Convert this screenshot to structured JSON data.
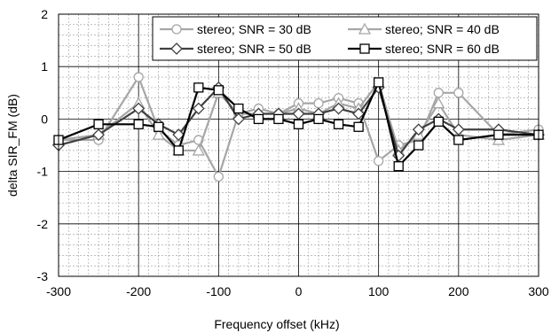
{
  "chart_data": {
    "type": "line",
    "title": "",
    "xlabel": "Frequency offset (kHz)",
    "ylabel": "delta SIR_FM (dB)",
    "xlim": [
      -300,
      300
    ],
    "ylim": [
      -3,
      2
    ],
    "xticks": [
      -300,
      -200,
      -100,
      0,
      100,
      200,
      300
    ],
    "yticks": [
      -3,
      -2,
      -1,
      0,
      1,
      2
    ],
    "grid": "major solid, minor dashed",
    "legend_position": "top-right",
    "series": [
      {
        "name": "stereo; SNR = 30 dB",
        "color": "#a6a6a6",
        "marker": "circle",
        "points": [
          [
            -300,
            -0.4
          ],
          [
            -250,
            -0.4
          ],
          [
            -200,
            0.8
          ],
          [
            -175,
            -0.2
          ],
          [
            -150,
            -0.5
          ],
          [
            -125,
            -0.4
          ],
          [
            -100,
            -1.1
          ],
          [
            -75,
            0.1
          ],
          [
            -50,
            0.2
          ],
          [
            -25,
            0.1
          ],
          [
            0,
            0.3
          ],
          [
            25,
            0.3
          ],
          [
            50,
            0.4
          ],
          [
            75,
            0.3
          ],
          [
            100,
            -0.8
          ],
          [
            125,
            -0.5
          ],
          [
            150,
            -0.4
          ],
          [
            175,
            0.5
          ],
          [
            200,
            0.5
          ],
          [
            250,
            -0.3
          ],
          [
            300,
            -0.2
          ]
        ]
      },
      {
        "name": "stereo; SNR = 40 dB",
        "color": "#a6a6a6",
        "marker": "triangle",
        "points": [
          [
            -300,
            -0.4
          ],
          [
            -250,
            -0.3
          ],
          [
            -200,
            0.3
          ],
          [
            -175,
            -0.3
          ],
          [
            -150,
            -0.6
          ],
          [
            -125,
            -0.6
          ],
          [
            -100,
            0.5
          ],
          [
            -75,
            0.1
          ],
          [
            -50,
            0.1
          ],
          [
            -25,
            0.1
          ],
          [
            0,
            0.2
          ],
          [
            25,
            0.1
          ],
          [
            50,
            0.3
          ],
          [
            75,
            0.2
          ],
          [
            100,
            0.7
          ],
          [
            125,
            -0.6
          ],
          [
            150,
            -0.3
          ],
          [
            175,
            0.3
          ],
          [
            200,
            -0.3
          ],
          [
            250,
            -0.4
          ],
          [
            300,
            -0.3
          ]
        ]
      },
      {
        "name": "stereo; SNR = 50 dB",
        "color": "#404040",
        "marker": "diamond",
        "points": [
          [
            -300,
            -0.5
          ],
          [
            -250,
            -0.3
          ],
          [
            -200,
            0.2
          ],
          [
            -175,
            -0.1
          ],
          [
            -150,
            -0.3
          ],
          [
            -125,
            0.2
          ],
          [
            -100,
            0.6
          ],
          [
            -75,
            0.0
          ],
          [
            -50,
            0.1
          ],
          [
            -25,
            0.1
          ],
          [
            0,
            0.1
          ],
          [
            25,
            0.1
          ],
          [
            50,
            0.2
          ],
          [
            75,
            0.1
          ],
          [
            100,
            0.6
          ],
          [
            125,
            -0.7
          ],
          [
            150,
            -0.2
          ],
          [
            175,
            0.0
          ],
          [
            200,
            -0.2
          ],
          [
            250,
            -0.2
          ],
          [
            300,
            -0.3
          ]
        ]
      },
      {
        "name": "stereo; SNR = 60 dB",
        "color": "#000000",
        "marker": "square",
        "points": [
          [
            -300,
            -0.4
          ],
          [
            -250,
            -0.1
          ],
          [
            -200,
            -0.1
          ],
          [
            -175,
            -0.15
          ],
          [
            -150,
            -0.6
          ],
          [
            -125,
            0.6
          ],
          [
            -100,
            0.55
          ],
          [
            -75,
            0.2
          ],
          [
            -50,
            0.0
          ],
          [
            -25,
            0.0
          ],
          [
            0,
            -0.1
          ],
          [
            25,
            0.0
          ],
          [
            50,
            -0.1
          ],
          [
            75,
            -0.15
          ],
          [
            100,
            0.7
          ],
          [
            125,
            -0.9
          ],
          [
            150,
            -0.5
          ],
          [
            175,
            -0.05
          ],
          [
            200,
            -0.4
          ],
          [
            250,
            -0.3
          ],
          [
            300,
            -0.3
          ]
        ]
      }
    ]
  }
}
